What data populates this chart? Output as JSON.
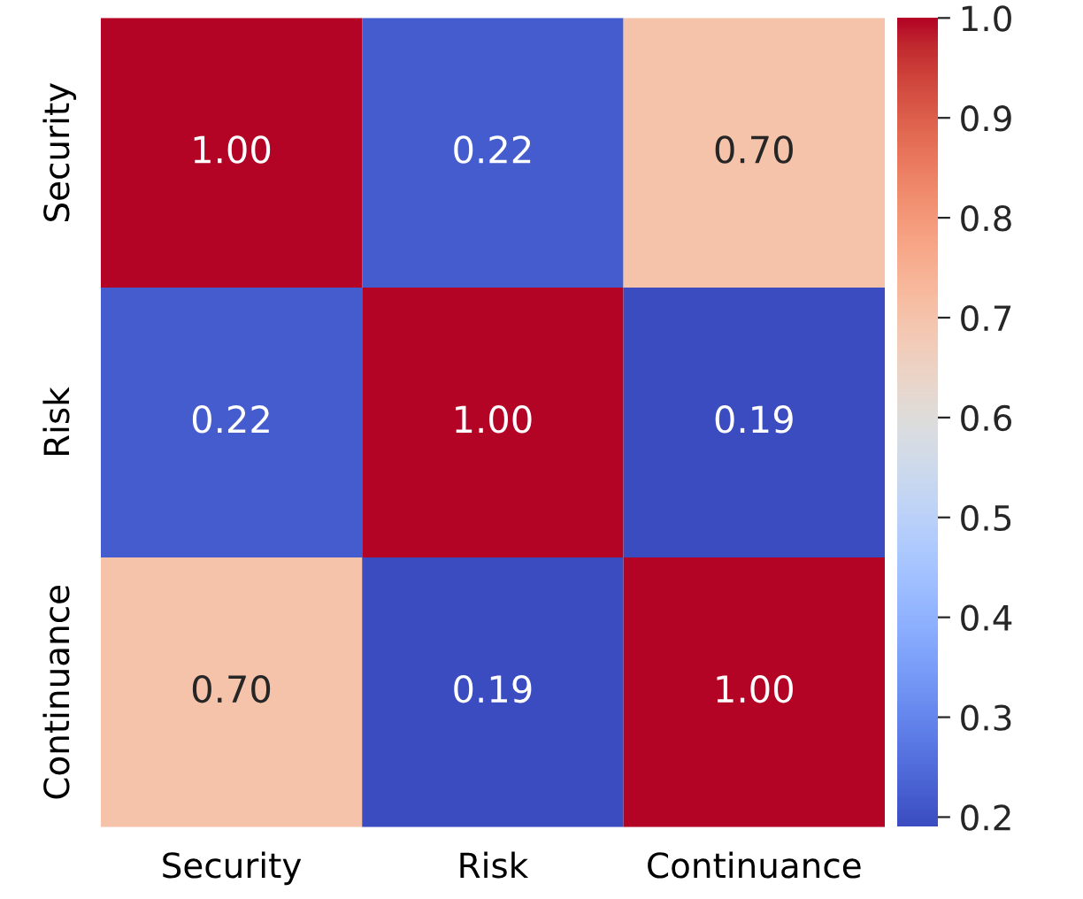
{
  "chart_data": {
    "type": "heatmap",
    "categories": [
      "Security",
      "Risk",
      "Continuance"
    ],
    "y_categories": [
      "Security",
      "Risk",
      "Continuance"
    ],
    "cells": [
      [
        1.0,
        0.22,
        0.7
      ],
      [
        0.22,
        1.0,
        0.19
      ],
      [
        0.7,
        0.19,
        1.0
      ]
    ],
    "cell_labels": [
      [
        "1.00",
        "0.22",
        "0.70"
      ],
      [
        "0.22",
        "1.00",
        "0.19"
      ],
      [
        "0.70",
        "0.19",
        "1.00"
      ]
    ],
    "clim": [
      0.19,
      1.0
    ],
    "cticks": [
      {
        "value": 0.2,
        "label": "0.2"
      },
      {
        "value": 0.3,
        "label": "0.3"
      },
      {
        "value": 0.4,
        "label": "0.4"
      },
      {
        "value": 0.5,
        "label": "0.5"
      },
      {
        "value": 0.6,
        "label": "0.6"
      },
      {
        "value": 0.7,
        "label": "0.7"
      },
      {
        "value": 0.8,
        "label": "0.8"
      },
      {
        "value": 0.9,
        "label": "0.9"
      },
      {
        "value": 1.0,
        "label": "1.0"
      }
    ]
  }
}
